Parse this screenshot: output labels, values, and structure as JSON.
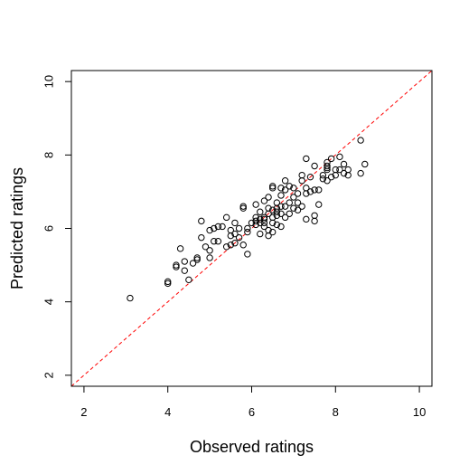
{
  "chart_data": {
    "type": "scatter",
    "title": "",
    "xlabel": "Observed ratings",
    "ylabel": "Predicted ratings",
    "xlim": [
      1.7,
      10.3
    ],
    "ylim": [
      1.7,
      10.3
    ],
    "xticks": [
      "2",
      "4",
      "6",
      "8",
      "10"
    ],
    "yticks": [
      "2",
      "4",
      "6",
      "8",
      "10"
    ],
    "grid": false,
    "reference_line": {
      "slope": 1,
      "intercept": 0,
      "color": "#ff0000",
      "style": "dashed"
    },
    "point_color": "#000000",
    "points": [
      [
        3.1,
        4.1
      ],
      [
        4.0,
        4.55
      ],
      [
        4.0,
        4.5
      ],
      [
        4.2,
        5.0
      ],
      [
        4.2,
        4.95
      ],
      [
        4.3,
        5.45
      ],
      [
        4.4,
        5.1
      ],
      [
        4.4,
        4.85
      ],
      [
        4.5,
        4.6
      ],
      [
        4.6,
        5.05
      ],
      [
        4.7,
        5.2
      ],
      [
        4.7,
        5.15
      ],
      [
        4.8,
        5.75
      ],
      [
        4.8,
        6.2
      ],
      [
        4.9,
        5.5
      ],
      [
        5.0,
        5.95
      ],
      [
        5.0,
        5.4
      ],
      [
        5.0,
        5.2
      ],
      [
        5.1,
        5.65
      ],
      [
        5.1,
        6.0
      ],
      [
        5.2,
        5.65
      ],
      [
        5.2,
        6.05
      ],
      [
        5.3,
        6.05
      ],
      [
        5.4,
        6.3
      ],
      [
        5.4,
        5.5
      ],
      [
        5.5,
        5.8
      ],
      [
        5.5,
        5.95
      ],
      [
        5.5,
        5.55
      ],
      [
        5.6,
        6.15
      ],
      [
        5.6,
        5.85
      ],
      [
        5.6,
        5.6
      ],
      [
        5.7,
        6.0
      ],
      [
        5.7,
        5.75
      ],
      [
        5.8,
        6.55
      ],
      [
        5.8,
        6.6
      ],
      [
        5.8,
        5.55
      ],
      [
        5.9,
        5.3
      ],
      [
        5.9,
        5.9
      ],
      [
        5.9,
        6.0
      ],
      [
        6.0,
        6.15
      ],
      [
        6.1,
        6.2
      ],
      [
        6.1,
        6.3
      ],
      [
        6.1,
        6.1
      ],
      [
        6.1,
        6.65
      ],
      [
        6.2,
        5.85
      ],
      [
        6.2,
        6.25
      ],
      [
        6.2,
        6.45
      ],
      [
        6.2,
        6.15
      ],
      [
        6.3,
        6.3
      ],
      [
        6.3,
        6.05
      ],
      [
        6.3,
        6.75
      ],
      [
        6.3,
        6.25
      ],
      [
        6.3,
        6.15
      ],
      [
        6.4,
        5.95
      ],
      [
        6.4,
        6.55
      ],
      [
        6.4,
        6.85
      ],
      [
        6.4,
        6.4
      ],
      [
        6.4,
        5.8
      ],
      [
        6.5,
        7.1
      ],
      [
        6.5,
        7.15
      ],
      [
        6.5,
        6.5
      ],
      [
        6.5,
        6.15
      ],
      [
        6.5,
        6.3
      ],
      [
        6.5,
        5.9
      ],
      [
        6.6,
        6.7
      ],
      [
        6.6,
        6.45
      ],
      [
        6.6,
        6.1
      ],
      [
        6.6,
        6.55
      ],
      [
        6.6,
        6.35
      ],
      [
        6.7,
        6.9
      ],
      [
        6.7,
        7.1
      ],
      [
        6.7,
        6.6
      ],
      [
        6.7,
        6.05
      ],
      [
        6.7,
        6.4
      ],
      [
        6.8,
        7.3
      ],
      [
        6.8,
        7.05
      ],
      [
        6.8,
        6.6
      ],
      [
        6.8,
        6.3
      ],
      [
        6.9,
        7.15
      ],
      [
        6.9,
        6.7
      ],
      [
        6.9,
        6.4
      ],
      [
        7.0,
        6.55
      ],
      [
        7.0,
        6.85
      ],
      [
        7.0,
        7.1
      ],
      [
        7.1,
        6.5
      ],
      [
        7.1,
        6.7
      ],
      [
        7.1,
        6.95
      ],
      [
        7.2,
        7.45
      ],
      [
        7.2,
        7.3
      ],
      [
        7.2,
        6.6
      ],
      [
        7.3,
        7.9
      ],
      [
        7.3,
        7.1
      ],
      [
        7.3,
        6.95
      ],
      [
        7.3,
        6.25
      ],
      [
        7.4,
        7.4
      ],
      [
        7.4,
        7.0
      ],
      [
        7.5,
        7.05
      ],
      [
        7.5,
        7.7
      ],
      [
        7.5,
        6.35
      ],
      [
        7.5,
        6.2
      ],
      [
        7.6,
        7.05
      ],
      [
        7.6,
        6.65
      ],
      [
        7.7,
        7.35
      ],
      [
        7.7,
        7.45
      ],
      [
        7.8,
        7.6
      ],
      [
        7.8,
        7.8
      ],
      [
        7.8,
        7.3
      ],
      [
        7.8,
        7.65
      ],
      [
        7.8,
        7.7
      ],
      [
        7.9,
        7.9
      ],
      [
        7.9,
        7.4
      ],
      [
        8.0,
        7.6
      ],
      [
        8.0,
        7.45
      ],
      [
        8.1,
        7.95
      ],
      [
        8.1,
        7.6
      ],
      [
        8.2,
        7.75
      ],
      [
        8.2,
        7.5
      ],
      [
        8.3,
        7.6
      ],
      [
        8.3,
        7.45
      ],
      [
        8.6,
        8.4
      ],
      [
        8.6,
        7.5
      ],
      [
        8.7,
        7.75
      ]
    ]
  }
}
